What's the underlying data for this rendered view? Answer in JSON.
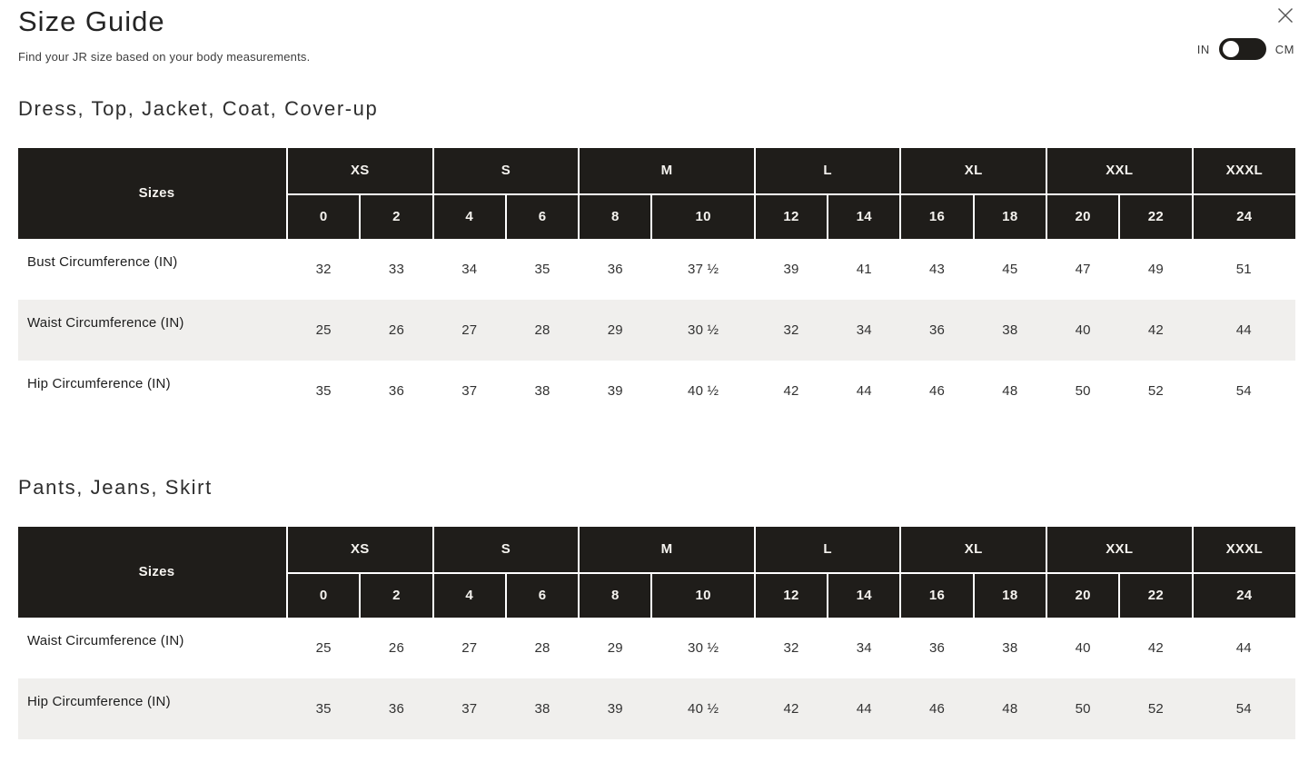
{
  "header": {
    "title": "Size Guide",
    "subtitle": "Find your JR size based on your body measurements.",
    "unit_toggle": {
      "left_label": "IN",
      "right_label": "CM",
      "selected": "IN"
    }
  },
  "colors": {
    "table_header_bg": "#1f1d1a",
    "alt_row_bg": "#f0efed",
    "toggle_bg": "#1f1d1a"
  },
  "sections": [
    {
      "heading": "Dress, Top, Jacket, Coat, Cover-up",
      "table": {
        "corner_label": "Sizes",
        "size_groups": [
          {
            "label": "XS",
            "cols": 2
          },
          {
            "label": "S",
            "cols": 2
          },
          {
            "label": "M",
            "cols": 2
          },
          {
            "label": "L",
            "cols": 2
          },
          {
            "label": "XL",
            "cols": 2
          },
          {
            "label": "XXL",
            "cols": 2
          },
          {
            "label": "XXXL",
            "cols": 1
          }
        ],
        "numeric_sizes": [
          "0",
          "2",
          "4",
          "6",
          "8",
          "10",
          "12",
          "14",
          "16",
          "18",
          "20",
          "22",
          "24"
        ],
        "rows": [
          {
            "label": "Bust Circumference (IN)",
            "values": [
              "32",
              "33",
              "34",
              "35",
              "36",
              "37 ½",
              "39",
              "41",
              "43",
              "45",
              "47",
              "49",
              "51"
            ]
          },
          {
            "label": "Waist Circumference (IN)",
            "values": [
              "25",
              "26",
              "27",
              "28",
              "29",
              "30 ½",
              "32",
              "34",
              "36",
              "38",
              "40",
              "42",
              "44"
            ]
          },
          {
            "label": "Hip Circumference (IN)",
            "values": [
              "35",
              "36",
              "37",
              "38",
              "39",
              "40 ½",
              "42",
              "44",
              "46",
              "48",
              "50",
              "52",
              "54"
            ]
          }
        ]
      }
    },
    {
      "heading": "Pants, Jeans, Skirt",
      "table": {
        "corner_label": "Sizes",
        "size_groups": [
          {
            "label": "XS",
            "cols": 2
          },
          {
            "label": "S",
            "cols": 2
          },
          {
            "label": "M",
            "cols": 2
          },
          {
            "label": "L",
            "cols": 2
          },
          {
            "label": "XL",
            "cols": 2
          },
          {
            "label": "XXL",
            "cols": 2
          },
          {
            "label": "XXXL",
            "cols": 1
          }
        ],
        "numeric_sizes": [
          "0",
          "2",
          "4",
          "6",
          "8",
          "10",
          "12",
          "14",
          "16",
          "18",
          "20",
          "22",
          "24"
        ],
        "rows": [
          {
            "label": "Waist Circumference (IN)",
            "values": [
              "25",
              "26",
              "27",
              "28",
              "29",
              "30 ½",
              "32",
              "34",
              "36",
              "38",
              "40",
              "42",
              "44"
            ]
          },
          {
            "label": "Hip Circumference (IN)",
            "values": [
              "35",
              "36",
              "37",
              "38",
              "39",
              "40 ½",
              "42",
              "44",
              "46",
              "48",
              "50",
              "52",
              "54"
            ]
          }
        ]
      }
    }
  ]
}
